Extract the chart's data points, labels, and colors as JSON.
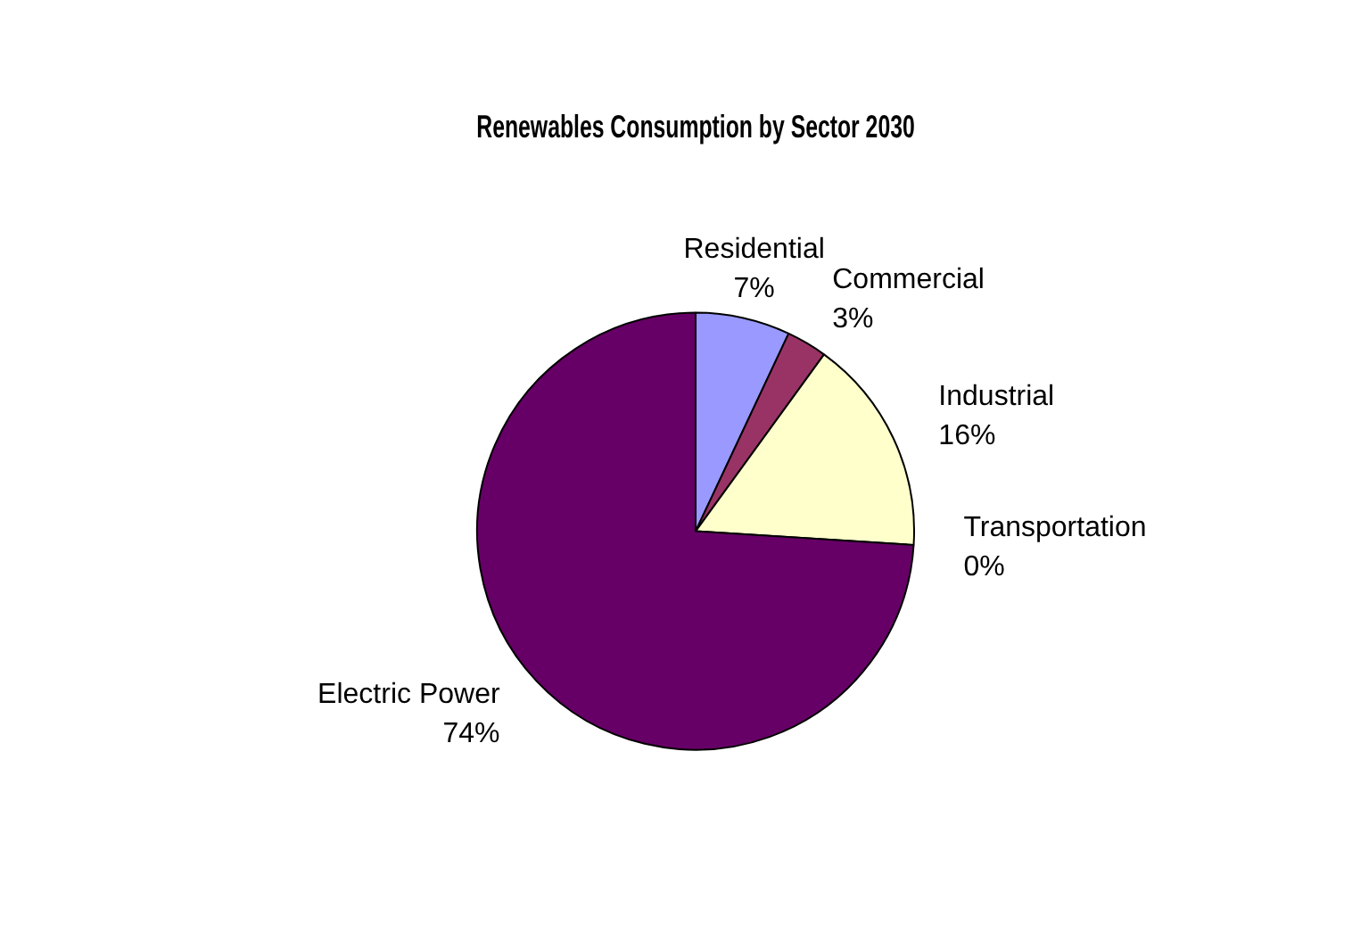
{
  "chart_data": {
    "type": "pie",
    "title": "Renewables Consumption by Sector 2030",
    "categories": [
      "Residential",
      "Commercial",
      "Industrial",
      "Transportation",
      "Electric Power"
    ],
    "values": [
      7,
      3,
      16,
      0,
      74
    ],
    "value_labels": [
      "7%",
      "3%",
      "16%",
      "0%",
      "74%"
    ],
    "colors": [
      "#9999ff",
      "#993366",
      "#ffffcc",
      "#ccffff",
      "#660066"
    ],
    "legend": false
  }
}
